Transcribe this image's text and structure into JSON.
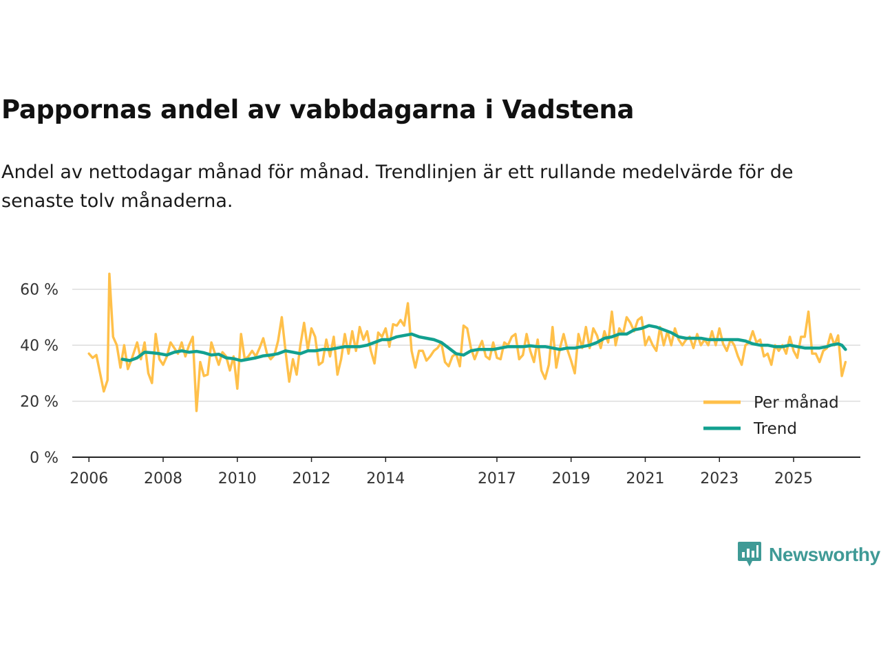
{
  "title": "Pappornas andel av vabbdagarna i Vadstena",
  "subtitle": "Andel av nettodagar månad för månad. Trendlinjen är ett rullande medelvärde för de senaste tolv månaderna.",
  "brand": {
    "name": "Newsworthy",
    "icon": "newsworthy-logo-icon",
    "color": "#3f9a96"
  },
  "colors": {
    "monthly": "#FFC04A",
    "trend": "#12A08F",
    "grid": "#dcdcdc",
    "axis": "#222222"
  },
  "chart_data": {
    "type": "line",
    "title": "Pappornas andel av vabbdagarna i Vadstena",
    "xlabel": "",
    "ylabel": "",
    "xlim": [
      2005.55,
      2026.8
    ],
    "ylim": [
      0,
      70
    ],
    "y_ticks": [
      0,
      20,
      40,
      60
    ],
    "y_tick_labels": [
      "0 %",
      "20 %",
      "40 %",
      "60 %"
    ],
    "x_ticks": [
      2006,
      2008,
      2010,
      2012,
      2014,
      2017,
      2019,
      2021,
      2023,
      2025
    ],
    "x_tick_labels": [
      "2006",
      "2008",
      "2010",
      "2012",
      "2014",
      "2017",
      "2019",
      "2021",
      "2023",
      "2025"
    ],
    "legend": {
      "position": "bottom-right",
      "entries": [
        "Per månad",
        "Trend"
      ]
    },
    "series": [
      {
        "name": "Per månad",
        "color": "#FFC04A",
        "points": [
          [
            2006.0,
            37
          ],
          [
            2006.1,
            35.5
          ],
          [
            2006.2,
            36.5
          ],
          [
            2006.3,
            30
          ],
          [
            2006.4,
            23.5
          ],
          [
            2006.5,
            27.5
          ],
          [
            2006.55,
            65.5
          ],
          [
            2006.65,
            43
          ],
          [
            2006.75,
            40
          ],
          [
            2006.85,
            32
          ],
          [
            2006.95,
            40
          ],
          [
            2007.05,
            31.5
          ],
          [
            2007.15,
            35
          ],
          [
            2007.3,
            41
          ],
          [
            2007.4,
            35
          ],
          [
            2007.5,
            41
          ],
          [
            2007.6,
            30
          ],
          [
            2007.7,
            26.5
          ],
          [
            2007.8,
            44
          ],
          [
            2007.9,
            35
          ],
          [
            2008.0,
            33
          ],
          [
            2008.1,
            36
          ],
          [
            2008.2,
            41
          ],
          [
            2008.3,
            39
          ],
          [
            2008.4,
            37
          ],
          [
            2008.5,
            41
          ],
          [
            2008.6,
            36
          ],
          [
            2008.7,
            40
          ],
          [
            2008.8,
            43
          ],
          [
            2008.9,
            16.5
          ],
          [
            2009.0,
            34
          ],
          [
            2009.1,
            29
          ],
          [
            2009.2,
            29.5
          ],
          [
            2009.3,
            41
          ],
          [
            2009.4,
            37
          ],
          [
            2009.5,
            33
          ],
          [
            2009.6,
            37.5
          ],
          [
            2009.7,
            36
          ],
          [
            2009.8,
            31
          ],
          [
            2009.9,
            36
          ],
          [
            2010.0,
            24.5
          ],
          [
            2010.1,
            44
          ],
          [
            2010.2,
            35
          ],
          [
            2010.3,
            36
          ],
          [
            2010.4,
            38
          ],
          [
            2010.5,
            36
          ],
          [
            2010.6,
            39
          ],
          [
            2010.7,
            42.5
          ],
          [
            2010.8,
            37
          ],
          [
            2010.9,
            35
          ],
          [
            2011.0,
            36.5
          ],
          [
            2011.1,
            41.5
          ],
          [
            2011.2,
            50
          ],
          [
            2011.3,
            38
          ],
          [
            2011.4,
            27
          ],
          [
            2011.5,
            35
          ],
          [
            2011.6,
            29.5
          ],
          [
            2011.7,
            40
          ],
          [
            2011.8,
            48
          ],
          [
            2011.9,
            38.5
          ],
          [
            2012.0,
            46
          ],
          [
            2012.1,
            43
          ],
          [
            2012.2,
            33
          ],
          [
            2012.3,
            34
          ],
          [
            2012.4,
            42
          ],
          [
            2012.5,
            36
          ],
          [
            2012.6,
            43
          ],
          [
            2012.7,
            29.5
          ],
          [
            2012.8,
            35
          ],
          [
            2012.9,
            44
          ],
          [
            2013.0,
            37
          ],
          [
            2013.1,
            45
          ],
          [
            2013.2,
            38
          ],
          [
            2013.3,
            46.5
          ],
          [
            2013.4,
            42
          ],
          [
            2013.5,
            45
          ],
          [
            2013.6,
            38
          ],
          [
            2013.7,
            33.5
          ],
          [
            2013.8,
            44.5
          ],
          [
            2013.9,
            43
          ],
          [
            2014.0,
            46
          ],
          [
            2014.1,
            39.5
          ],
          [
            2014.2,
            47.5
          ],
          [
            2014.3,
            47
          ],
          [
            2014.4,
            49
          ],
          [
            2014.5,
            47
          ],
          [
            2014.6,
            55
          ],
          [
            2014.7,
            38
          ],
          [
            2014.8,
            32
          ],
          [
            2014.9,
            38
          ],
          [
            2015.0,
            38
          ],
          [
            2015.1,
            34.5
          ],
          [
            2015.2,
            36
          ],
          [
            2015.3,
            38
          ],
          [
            2015.4,
            39
          ],
          [
            2015.5,
            41
          ],
          [
            2015.6,
            34
          ],
          [
            2015.7,
            32.5
          ],
          [
            2015.8,
            36
          ],
          [
            2015.9,
            37
          ],
          [
            2016.0,
            32.5
          ],
          [
            2016.1,
            47
          ],
          [
            2016.2,
            46
          ],
          [
            2016.3,
            39
          ],
          [
            2016.4,
            35
          ],
          [
            2016.5,
            38.5
          ],
          [
            2016.6,
            41.5
          ],
          [
            2016.7,
            36
          ],
          [
            2016.8,
            35
          ],
          [
            2016.9,
            41
          ],
          [
            2017.0,
            35.5
          ],
          [
            2017.1,
            35
          ],
          [
            2017.2,
            41
          ],
          [
            2017.3,
            40
          ],
          [
            2017.4,
            43
          ],
          [
            2017.5,
            44
          ],
          [
            2017.6,
            35
          ],
          [
            2017.7,
            36.5
          ],
          [
            2017.8,
            44
          ],
          [
            2017.9,
            38
          ],
          [
            2018.0,
            34
          ],
          [
            2018.1,
            42
          ],
          [
            2018.2,
            31
          ],
          [
            2018.3,
            28
          ],
          [
            2018.4,
            33
          ],
          [
            2018.5,
            46.5
          ],
          [
            2018.6,
            32
          ],
          [
            2018.7,
            39
          ],
          [
            2018.8,
            44
          ],
          [
            2018.9,
            38.5
          ],
          [
            2019.0,
            34.5
          ],
          [
            2019.1,
            30
          ],
          [
            2019.2,
            44
          ],
          [
            2019.3,
            39
          ],
          [
            2019.4,
            46.5
          ],
          [
            2019.5,
            39
          ],
          [
            2019.6,
            46
          ],
          [
            2019.7,
            43.5
          ],
          [
            2019.8,
            39
          ],
          [
            2019.9,
            45
          ],
          [
            2020.0,
            41
          ],
          [
            2020.1,
            52
          ],
          [
            2020.2,
            40
          ],
          [
            2020.3,
            46
          ],
          [
            2020.4,
            44
          ],
          [
            2020.5,
            50
          ],
          [
            2020.6,
            48
          ],
          [
            2020.7,
            45
          ],
          [
            2020.8,
            49
          ],
          [
            2020.9,
            50
          ],
          [
            2021.0,
            40
          ],
          [
            2021.1,
            43
          ],
          [
            2021.2,
            40
          ],
          [
            2021.3,
            38
          ],
          [
            2021.4,
            46.5
          ],
          [
            2021.5,
            40
          ],
          [
            2021.6,
            45
          ],
          [
            2021.7,
            40
          ],
          [
            2021.8,
            46
          ],
          [
            2021.9,
            42
          ],
          [
            2022.0,
            40
          ],
          [
            2022.1,
            42
          ],
          [
            2022.2,
            43
          ],
          [
            2022.3,
            39
          ],
          [
            2022.4,
            44
          ],
          [
            2022.5,
            40
          ],
          [
            2022.6,
            42
          ],
          [
            2022.7,
            40
          ],
          [
            2022.8,
            45
          ],
          [
            2022.9,
            40
          ],
          [
            2023.0,
            46
          ],
          [
            2023.1,
            40.5
          ],
          [
            2023.2,
            38
          ],
          [
            2023.3,
            42
          ],
          [
            2023.4,
            40
          ],
          [
            2023.5,
            36
          ],
          [
            2023.6,
            33
          ],
          [
            2023.7,
            40
          ],
          [
            2023.8,
            41
          ],
          [
            2023.9,
            45
          ],
          [
            2024.0,
            41
          ],
          [
            2024.1,
            42
          ],
          [
            2024.2,
            36
          ],
          [
            2024.3,
            37
          ],
          [
            2024.4,
            33
          ],
          [
            2024.5,
            40
          ],
          [
            2024.6,
            38
          ],
          [
            2024.7,
            40
          ],
          [
            2024.8,
            37
          ],
          [
            2024.9,
            43
          ],
          [
            2025.0,
            38
          ],
          [
            2025.1,
            35.5
          ],
          [
            2025.2,
            43
          ],
          [
            2025.3,
            43
          ],
          [
            2025.4,
            52
          ],
          [
            2025.5,
            37
          ],
          [
            2025.6,
            37
          ],
          [
            2025.7,
            34
          ],
          [
            2025.8,
            38
          ],
          [
            2025.9,
            39
          ],
          [
            2026.0,
            44
          ],
          [
            2026.1,
            40
          ],
          [
            2026.2,
            43.5
          ],
          [
            2026.3,
            29
          ],
          [
            2026.4,
            34
          ]
        ]
      },
      {
        "name": "Trend",
        "color": "#12A08F",
        "points": [
          [
            2006.9,
            35
          ],
          [
            2007.1,
            34.5
          ],
          [
            2007.3,
            35.5
          ],
          [
            2007.5,
            37.5
          ],
          [
            2007.7,
            37.3
          ],
          [
            2007.9,
            37
          ],
          [
            2008.1,
            36.5
          ],
          [
            2008.3,
            37.5
          ],
          [
            2008.5,
            38
          ],
          [
            2008.7,
            37.5
          ],
          [
            2008.9,
            37.8
          ],
          [
            2009.1,
            37.3
          ],
          [
            2009.3,
            36.5
          ],
          [
            2009.5,
            36.8
          ],
          [
            2009.7,
            35.5
          ],
          [
            2009.9,
            35.2
          ],
          [
            2010.1,
            34.5
          ],
          [
            2010.3,
            35
          ],
          [
            2010.5,
            35.5
          ],
          [
            2010.7,
            36.2
          ],
          [
            2010.9,
            36.5
          ],
          [
            2011.1,
            37
          ],
          [
            2011.3,
            38
          ],
          [
            2011.5,
            37.5
          ],
          [
            2011.7,
            37
          ],
          [
            2011.9,
            38
          ],
          [
            2012.1,
            38
          ],
          [
            2012.3,
            38.5
          ],
          [
            2012.5,
            38.5
          ],
          [
            2012.7,
            39
          ],
          [
            2012.9,
            39.5
          ],
          [
            2013.1,
            39.5
          ],
          [
            2013.3,
            39.5
          ],
          [
            2013.5,
            40
          ],
          [
            2013.7,
            41
          ],
          [
            2013.9,
            42
          ],
          [
            2014.1,
            42
          ],
          [
            2014.3,
            43
          ],
          [
            2014.5,
            43.5
          ],
          [
            2014.7,
            44
          ],
          [
            2014.9,
            43
          ],
          [
            2015.1,
            42.5
          ],
          [
            2015.3,
            42
          ],
          [
            2015.5,
            41
          ],
          [
            2015.7,
            39
          ],
          [
            2015.9,
            37
          ],
          [
            2016.1,
            36.5
          ],
          [
            2016.3,
            38
          ],
          [
            2016.5,
            38.5
          ],
          [
            2016.7,
            38.5
          ],
          [
            2016.9,
            38.5
          ],
          [
            2017.1,
            39
          ],
          [
            2017.3,
            39.5
          ],
          [
            2017.5,
            39.5
          ],
          [
            2017.7,
            39.5
          ],
          [
            2017.9,
            39.8
          ],
          [
            2018.1,
            39.5
          ],
          [
            2018.3,
            39.5
          ],
          [
            2018.5,
            39
          ],
          [
            2018.7,
            38.5
          ],
          [
            2018.9,
            39
          ],
          [
            2019.1,
            39
          ],
          [
            2019.3,
            39.5
          ],
          [
            2019.5,
            40
          ],
          [
            2019.7,
            41
          ],
          [
            2019.9,
            42.5
          ],
          [
            2020.1,
            43
          ],
          [
            2020.3,
            44
          ],
          [
            2020.5,
            44
          ],
          [
            2020.7,
            45.5
          ],
          [
            2020.9,
            46
          ],
          [
            2021.1,
            47
          ],
          [
            2021.3,
            46.5
          ],
          [
            2021.5,
            45.5
          ],
          [
            2021.7,
            44.5
          ],
          [
            2021.9,
            43
          ],
          [
            2022.1,
            42.5
          ],
          [
            2022.3,
            42.5
          ],
          [
            2022.5,
            42.5
          ],
          [
            2022.7,
            42
          ],
          [
            2022.9,
            42
          ],
          [
            2023.1,
            42
          ],
          [
            2023.3,
            42
          ],
          [
            2023.5,
            42
          ],
          [
            2023.7,
            41.5
          ],
          [
            2023.9,
            40.5
          ],
          [
            2024.1,
            40
          ],
          [
            2024.3,
            40
          ],
          [
            2024.5,
            39.5
          ],
          [
            2024.7,
            39.5
          ],
          [
            2024.9,
            40
          ],
          [
            2025.1,
            39.5
          ],
          [
            2025.3,
            39
          ],
          [
            2025.5,
            39
          ],
          [
            2025.7,
            39
          ],
          [
            2025.9,
            39.5
          ],
          [
            2026.0,
            40
          ],
          [
            2026.2,
            40.5
          ],
          [
            2026.3,
            40
          ],
          [
            2026.4,
            38.5
          ]
        ]
      }
    ]
  }
}
